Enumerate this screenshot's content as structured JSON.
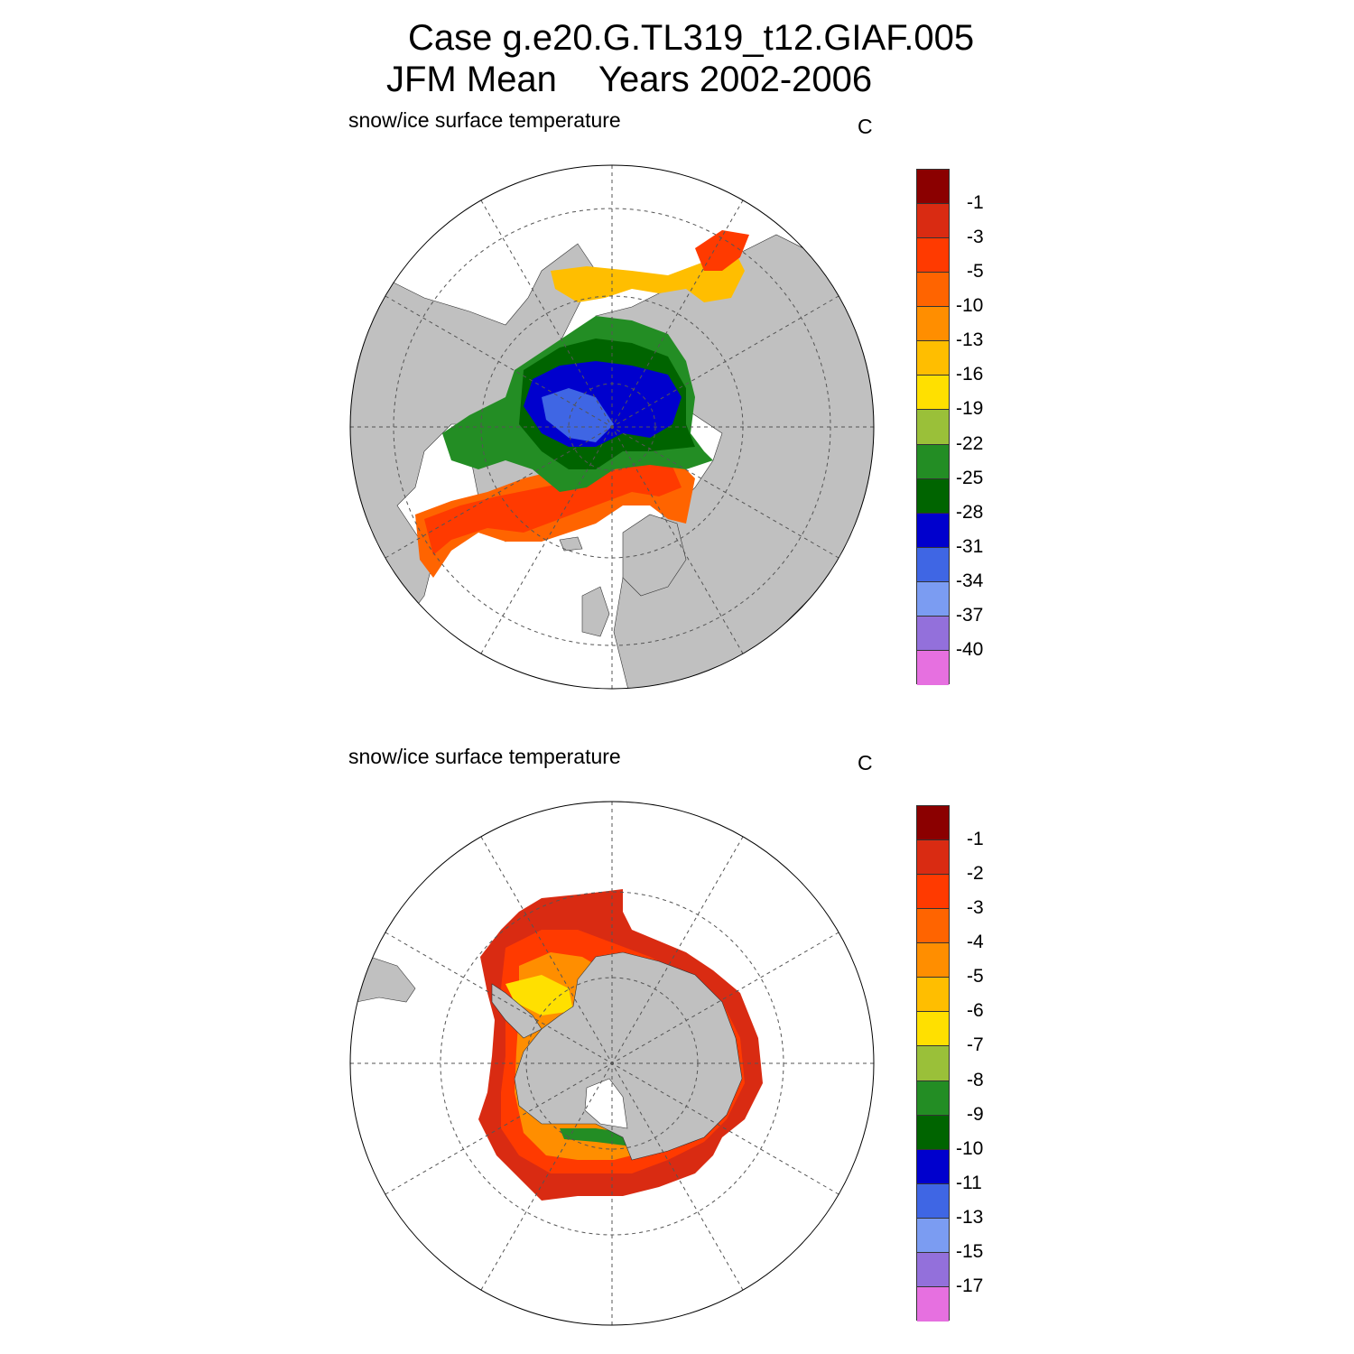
{
  "header": {
    "line1": "Case g.e20.G.TL319_t12.GIAF.005",
    "line2_season": "JFM Mean",
    "line2_years": "Years 2002-2006"
  },
  "panels": [
    {
      "hemisphere": "north",
      "variable_label": "snow/ice surface temperature",
      "units": "C",
      "colorbar": {
        "colors": [
          "#8b0000",
          "#d92b12",
          "#ff3a00",
          "#ff6400",
          "#ff8e00",
          "#ffbe00",
          "#ffe000",
          "#9ac039",
          "#238d24",
          "#006400",
          "#0000cd",
          "#3f66e4",
          "#7b9cf2",
          "#9370db",
          "#e670e0"
        ],
        "labels": [
          "-1",
          "-3",
          "-5",
          "-10",
          "-13",
          "-16",
          "-19",
          "-22",
          "-25",
          "-28",
          "-31",
          "-34",
          "-37",
          "-40"
        ]
      }
    },
    {
      "hemisphere": "south",
      "variable_label": "snow/ice surface temperature",
      "units": "C",
      "colorbar": {
        "colors": [
          "#8b0000",
          "#d92b12",
          "#ff3a00",
          "#ff6400",
          "#ff8e00",
          "#ffbe00",
          "#ffe000",
          "#9ac039",
          "#238d24",
          "#006400",
          "#0000cd",
          "#3f66e4",
          "#7b9cf2",
          "#9370db",
          "#e670e0"
        ],
        "labels": [
          "-1",
          "-2",
          "-3",
          "-4",
          "-5",
          "-6",
          "-7",
          "-8",
          "-9",
          "-10",
          "-11",
          "-13",
          "-15",
          "-17"
        ]
      }
    }
  ]
}
